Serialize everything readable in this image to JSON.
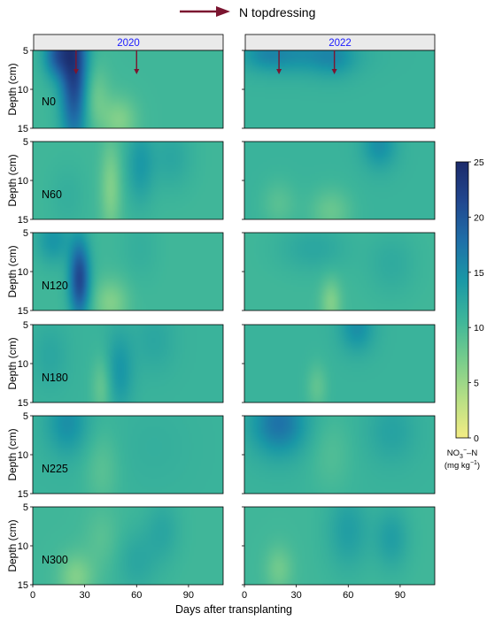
{
  "legend": {
    "topdressing_label": "N topdressing",
    "arrow_color": "#7b1530"
  },
  "years": [
    "2020",
    "2022"
  ],
  "year_label_color": "#1a1aff",
  "treatments": [
    "N0",
    "N60",
    "N120",
    "N180",
    "N225",
    "N300"
  ],
  "y_axis": {
    "label": "Depth (cm)",
    "ticks": [
      "5",
      "10",
      "15"
    ],
    "range": [
      5,
      15
    ]
  },
  "x_axis": {
    "label": "Days after transplanting",
    "ticks": [
      "0",
      "30",
      "60",
      "90"
    ],
    "range": [
      0,
      110
    ]
  },
  "colorbar": {
    "ticks": [
      "0",
      "5",
      "10",
      "15",
      "20",
      "25"
    ],
    "range": [
      0,
      25
    ],
    "label_line1": "NO",
    "label_sub": "3",
    "label_sup": "−",
    "label_rest": "–N",
    "unit_prefix": "(mg kg",
    "unit_sup": "−1",
    "unit_suffix": ")",
    "stops": [
      "#f3ec84",
      "#b6df85",
      "#76cc8c",
      "#3db59a",
      "#1a98a6",
      "#1f6fa8",
      "#21478f",
      "#1b2a6a"
    ]
  },
  "chart_data": {
    "type": "heatmap",
    "title": "",
    "xlabel": "Days after transplanting",
    "ylabel": "Depth (cm)",
    "xlim": [
      0,
      110
    ],
    "ylim": [
      5,
      15
    ],
    "value_label": "NO3−–N (mg kg−1)",
    "value_range": [
      0,
      25
    ],
    "topdressing_days": {
      "2020": [
        25,
        60
      ],
      "2022": [
        20,
        52
      ]
    },
    "panels": [
      {
        "treatment": "N0",
        "year": "2020",
        "base": 10.5,
        "blobs": [
          [
            24,
            7,
            8,
            10,
            12
          ],
          [
            14,
            5.5,
            8,
            3,
            8
          ],
          [
            50,
            14,
            10,
            3,
            -4
          ],
          [
            36,
            11,
            8,
            4,
            -3
          ]
        ]
      },
      {
        "treatment": "N0",
        "year": "2022",
        "base": 11,
        "blobs": [
          [
            30,
            5.5,
            30,
            2.5,
            4
          ],
          [
            12,
            5.5,
            12,
            2,
            2
          ],
          [
            52,
            6,
            12,
            2.5,
            2.5
          ]
        ]
      },
      {
        "treatment": "N60",
        "year": "2020",
        "base": 10.5,
        "blobs": [
          [
            45,
            11,
            6,
            6,
            -4
          ],
          [
            62,
            8,
            8,
            5,
            3.5
          ],
          [
            80,
            7,
            12,
            4,
            2
          ],
          [
            20,
            12,
            10,
            4,
            1
          ]
        ]
      },
      {
        "treatment": "N60",
        "year": "2022",
        "base": 11,
        "blobs": [
          [
            78,
            5.5,
            10,
            3,
            4
          ],
          [
            50,
            14,
            12,
            3,
            -3
          ],
          [
            20,
            13,
            10,
            3,
            -2
          ]
        ]
      },
      {
        "treatment": "N120",
        "year": "2020",
        "base": 10.5,
        "blobs": [
          [
            27,
            11,
            6,
            5,
            11
          ],
          [
            12,
            6,
            10,
            3,
            4
          ],
          [
            45,
            14,
            10,
            3,
            -4
          ],
          [
            62,
            7,
            10,
            4,
            1
          ]
        ]
      },
      {
        "treatment": "N120",
        "year": "2022",
        "base": 10.5,
        "blobs": [
          [
            50,
            14,
            6,
            3,
            -4
          ],
          [
            40,
            7,
            20,
            3,
            2
          ],
          [
            85,
            9,
            14,
            4,
            1.5
          ]
        ]
      },
      {
        "treatment": "N180",
        "year": "2020",
        "base": 11,
        "blobs": [
          [
            50,
            11,
            8,
            5,
            3.5
          ],
          [
            40,
            13,
            6,
            4,
            -3
          ],
          [
            10,
            9,
            10,
            4,
            1.5
          ],
          [
            70,
            7,
            12,
            4,
            1.5
          ]
        ]
      },
      {
        "treatment": "N180",
        "year": "2022",
        "base": 11,
        "blobs": [
          [
            65,
            5.5,
            10,
            3,
            4
          ],
          [
            42,
            13,
            6,
            3,
            -2.5
          ]
        ]
      },
      {
        "treatment": "N225",
        "year": "2020",
        "base": 11,
        "blobs": [
          [
            20,
            6,
            12,
            4,
            4
          ],
          [
            40,
            12,
            10,
            5,
            -2
          ],
          [
            70,
            9,
            20,
            5,
            0.5
          ]
        ]
      },
      {
        "treatment": "N225",
        "year": "2022",
        "base": 11,
        "blobs": [
          [
            20,
            6,
            16,
            4,
            6.5
          ],
          [
            50,
            10,
            12,
            5,
            -1.5
          ],
          [
            85,
            7,
            14,
            4,
            2
          ]
        ]
      },
      {
        "treatment": "N300",
        "year": "2020",
        "base": 10.5,
        "blobs": [
          [
            25,
            14,
            10,
            3,
            -4
          ],
          [
            60,
            12,
            12,
            4,
            2
          ],
          [
            75,
            8,
            10,
            4,
            2
          ],
          [
            40,
            9,
            10,
            4,
            -1.5
          ]
        ]
      },
      {
        "treatment": "N300",
        "year": "2022",
        "base": 10.5,
        "blobs": [
          [
            60,
            8,
            12,
            5,
            3
          ],
          [
            85,
            9,
            10,
            4,
            3
          ],
          [
            20,
            13,
            8,
            3,
            -3
          ]
        ]
      }
    ]
  }
}
